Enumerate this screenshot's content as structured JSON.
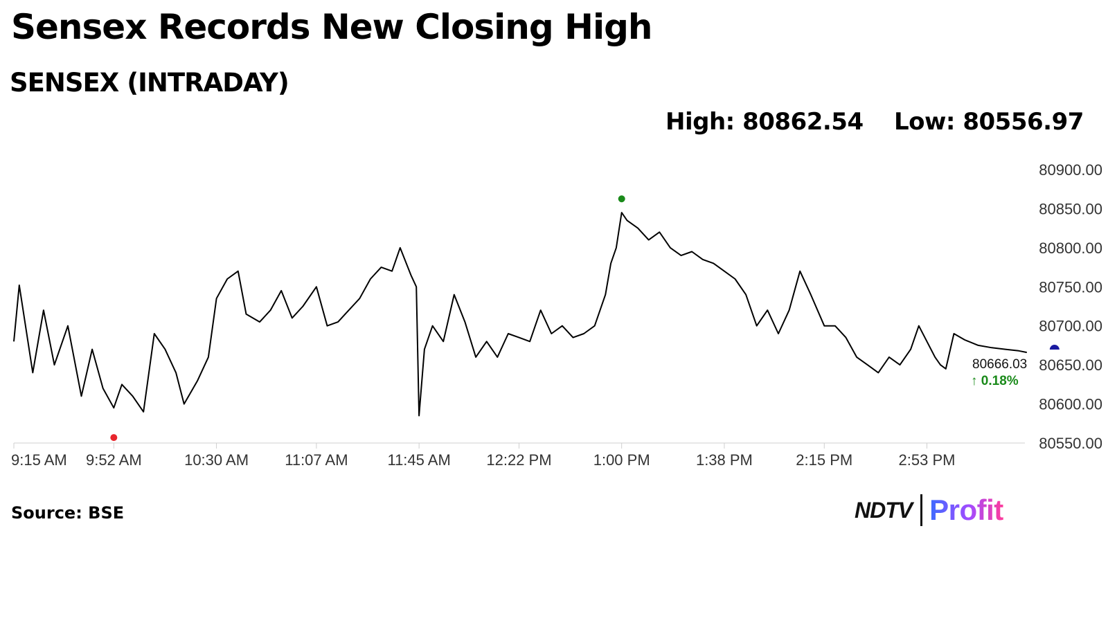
{
  "headline": "Sensex Records New Closing High",
  "subtitle": "SENSEX (INTRADAY)",
  "stats": {
    "high_label": "High: 80862.54",
    "low_label": "Low: 80556.97"
  },
  "source": "Source: BSE",
  "logo": {
    "brand": "NDTV",
    "product": "Profit",
    "accent": "#e8262d"
  },
  "chart_data": {
    "type": "line",
    "title": "",
    "xlabel": "",
    "ylabel": "",
    "ylim": [
      80550,
      80900
    ],
    "y_ticks": [
      "80900.00",
      "80850.00",
      "80800.00",
      "80750.00",
      "80700.00",
      "80650.00",
      "80600.00",
      "80550.00"
    ],
    "x_ticks": [
      "9:15 AM",
      "9:52 AM",
      "10:30 AM",
      "11:07 AM",
      "11:45 AM",
      "12:22 PM",
      "1:00 PM",
      "1:38 PM",
      "2:15 PM",
      "2:53 PM"
    ],
    "grid": false,
    "line_color": "#000000",
    "series": [
      {
        "x": [
          "9:15 AM",
          "9:17 AM",
          "9:22 AM",
          "9:26 AM",
          "9:30 AM",
          "9:35 AM",
          "9:40 AM",
          "9:44 AM",
          "9:48 AM",
          "9:52 AM",
          "9:55 AM",
          "9:59 AM",
          "10:03 AM",
          "10:07 AM",
          "10:11 AM",
          "10:15 AM",
          "10:18 AM",
          "10:23 AM",
          "10:27 AM",
          "10:30 AM",
          "10:34 AM",
          "10:38 AM",
          "10:41 AM",
          "10:46 AM",
          "10:50 AM",
          "10:54 AM",
          "10:58 AM",
          "11:02 AM",
          "11:07 AM",
          "11:11 AM",
          "11:15 AM",
          "11:19 AM",
          "11:23 AM",
          "11:27 AM",
          "11:31 AM",
          "11:35 AM",
          "11:38 AM",
          "11:42 AM",
          "11:44 AM",
          "11:45 AM",
          "11:47 AM",
          "11:50 AM",
          "11:54 AM",
          "11:58 AM",
          "12:02 PM",
          "12:06 PM",
          "12:10 PM",
          "12:14 PM",
          "12:18 PM",
          "12:22 PM",
          "12:26 PM",
          "12:30 PM",
          "12:34 PM",
          "12:38 PM",
          "12:42 PM",
          "12:46 PM",
          "12:50 PM",
          "12:54 PM",
          "12:56 PM",
          "12:58 PM",
          "1:00 PM",
          "1:02 PM",
          "1:06 PM",
          "1:10 PM",
          "1:14 PM",
          "1:18 PM",
          "1:22 PM",
          "1:26 PM",
          "1:30 PM",
          "1:34 PM",
          "1:38 PM",
          "1:42 PM",
          "1:46 PM",
          "1:50 PM",
          "1:54 PM",
          "1:58 PM",
          "2:02 PM",
          "2:06 PM",
          "2:10 PM",
          "2:15 PM",
          "2:19 PM",
          "2:23 PM",
          "2:27 PM",
          "2:31 PM",
          "2:35 PM",
          "2:39 PM",
          "2:43 PM",
          "2:47 PM",
          "2:50 PM",
          "2:53 PM",
          "2:56 PM",
          "2:58 PM",
          "3:00 PM",
          "3:03 PM",
          "3:07 PM",
          "3:12 PM",
          "3:17 PM",
          "3:22 PM",
          "3:27 PM",
          "3:30 PM"
        ],
        "values": [
          80680,
          80752,
          80640,
          80720,
          80650,
          80700,
          80610,
          80670,
          80620,
          80595,
          80625,
          80610,
          80590,
          80690,
          80670,
          80640,
          80600,
          80630,
          80660,
          80735,
          80760,
          80770,
          80715,
          80705,
          80720,
          80745,
          80710,
          80725,
          80750,
          80700,
          80705,
          80720,
          80735,
          80760,
          80775,
          80770,
          80800,
          80765,
          80750,
          80585,
          80670,
          80700,
          80680,
          80740,
          80705,
          80660,
          80680,
          80660,
          80690,
          80685,
          80680,
          80720,
          80690,
          80700,
          80685,
          80690,
          80700,
          80740,
          80780,
          80800,
          80845,
          80835,
          80825,
          80810,
          80820,
          80800,
          80790,
          80795,
          80785,
          80780,
          80770,
          80760,
          80740,
          80700,
          80720,
          80690,
          80720,
          80770,
          80740,
          80700,
          80700,
          80685,
          80660,
          80650,
          80640,
          80660,
          80650,
          80670,
          80700,
          80680,
          80660,
          80650,
          80645,
          80690,
          80682,
          80675,
          80672,
          80670,
          80668,
          80666.03
        ]
      }
    ],
    "high": {
      "time": "1:00 PM",
      "value": 80862.54,
      "color": "#1a8a1a"
    },
    "low": {
      "time": "9:52 AM",
      "value": 80556.97,
      "color": "#e8262d"
    },
    "last": {
      "time": "3:30 PM",
      "value": "80666.03",
      "change": "0.18%",
      "up_color": "#1a8a1a",
      "marker_color": "#1a1aa0"
    }
  }
}
